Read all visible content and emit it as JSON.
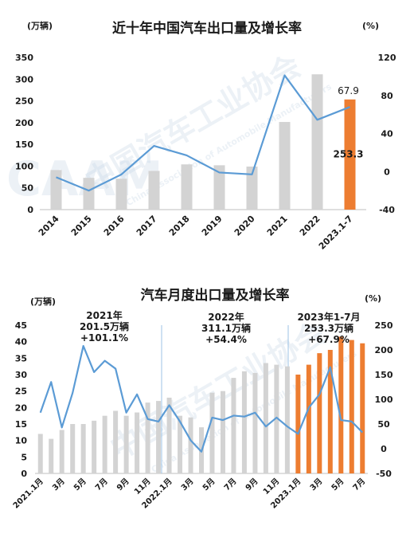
{
  "colors": {
    "bar_gray": "#d3d3d3",
    "bar_orange": "#ed7d31",
    "line_blue": "#5b9bd5",
    "divider": "#9dc3e6",
    "axis": "#bfbfbf",
    "watermark": "#c9d9e8"
  },
  "watermark": {
    "logo": "CAAM",
    "name_cn": "中国汽车工业协会",
    "name_en": "China Association of Automobile Manufacturers"
  },
  "chart_data": [
    {
      "type": "bar",
      "title": "近十年中国汽车出口量及增长率",
      "ylabel": "(万辆)",
      "y2label": "(%)",
      "ylim": [
        0,
        350
      ],
      "yticks": [
        0,
        50,
        100,
        150,
        200,
        250,
        300,
        350
      ],
      "y2lim": [
        -40,
        120
      ],
      "y2ticks": [
        -40,
        0,
        40,
        80,
        120
      ],
      "grid": false,
      "categories": [
        "2014",
        "2015",
        "2016",
        "2017",
        "2018",
        "2019",
        "2020",
        "2021",
        "2022",
        "2023.1-7"
      ],
      "series": [
        {
          "kind": "bar",
          "axis": "left",
          "values": [
            91,
            73,
            71,
            89,
            104,
            102,
            99,
            201.5,
            311.1,
            253.3
          ],
          "highlight_index": 9
        },
        {
          "kind": "line",
          "axis": "right",
          "values": [
            -6,
            -20,
            -3,
            27,
            17,
            -1,
            -3,
            101.1,
            54.4,
            67.9
          ]
        }
      ],
      "annotations": [
        {
          "text": "67.9",
          "target": "line",
          "index": 9
        },
        {
          "text": "253.3",
          "target": "bar",
          "index": 9
        }
      ]
    },
    {
      "type": "bar",
      "title": "汽车月度出口量及增长率",
      "ylabel": "(万辆)",
      "y2label": "(%)",
      "ylim": [
        0,
        45
      ],
      "yticks": [
        0,
        5,
        10,
        15,
        20,
        25,
        30,
        35,
        40,
        45
      ],
      "y2lim": [
        -50,
        250
      ],
      "y2ticks": [
        -50,
        0,
        50,
        100,
        150,
        200,
        250
      ],
      "grid": false,
      "x_tick_labels": [
        "2021.1月",
        "3月",
        "5月",
        "7月",
        "9月",
        "11月",
        "2022.1月",
        "3月",
        "5月",
        "7月",
        "9月",
        "11月",
        "2023.1月",
        "3月",
        "5月",
        "7月"
      ],
      "x_tick_positions": [
        0,
        2,
        4,
        6,
        8,
        10,
        12,
        14,
        16,
        18,
        20,
        22,
        24,
        26,
        28,
        30
      ],
      "months_total": 31,
      "series": [
        {
          "kind": "bar",
          "axis": "left",
          "values": [
            12,
            10.5,
            13.2,
            15,
            15,
            16,
            17.5,
            19,
            17.5,
            18.5,
            21.5,
            22,
            23,
            17.5,
            17,
            14,
            24.5,
            25,
            29,
            31,
            30.5,
            33.5,
            33,
            32.5,
            30,
            33,
            36.5,
            37.5,
            41.5,
            40.5,
            39.5
          ],
          "highlight_from_index": 24
        },
        {
          "kind": "line",
          "axis": "right",
          "values": [
            73,
            135,
            43,
            113,
            208,
            155,
            178,
            162,
            73,
            110,
            60,
            55,
            88,
            55,
            17,
            -6,
            63,
            58,
            67,
            65,
            73,
            45,
            63,
            45,
            30,
            83,
            110,
            165,
            58,
            55,
            33
          ]
        }
      ],
      "annotations": [
        {
          "lines": [
            "2021年",
            "201.5万辆",
            "+101.1%"
          ]
        },
        {
          "lines": [
            "2022年",
            "311.1万辆",
            "+54.4%"
          ]
        },
        {
          "lines": [
            "2023年1-7月",
            "253.3万辆",
            "+67.9%"
          ]
        }
      ]
    }
  ]
}
